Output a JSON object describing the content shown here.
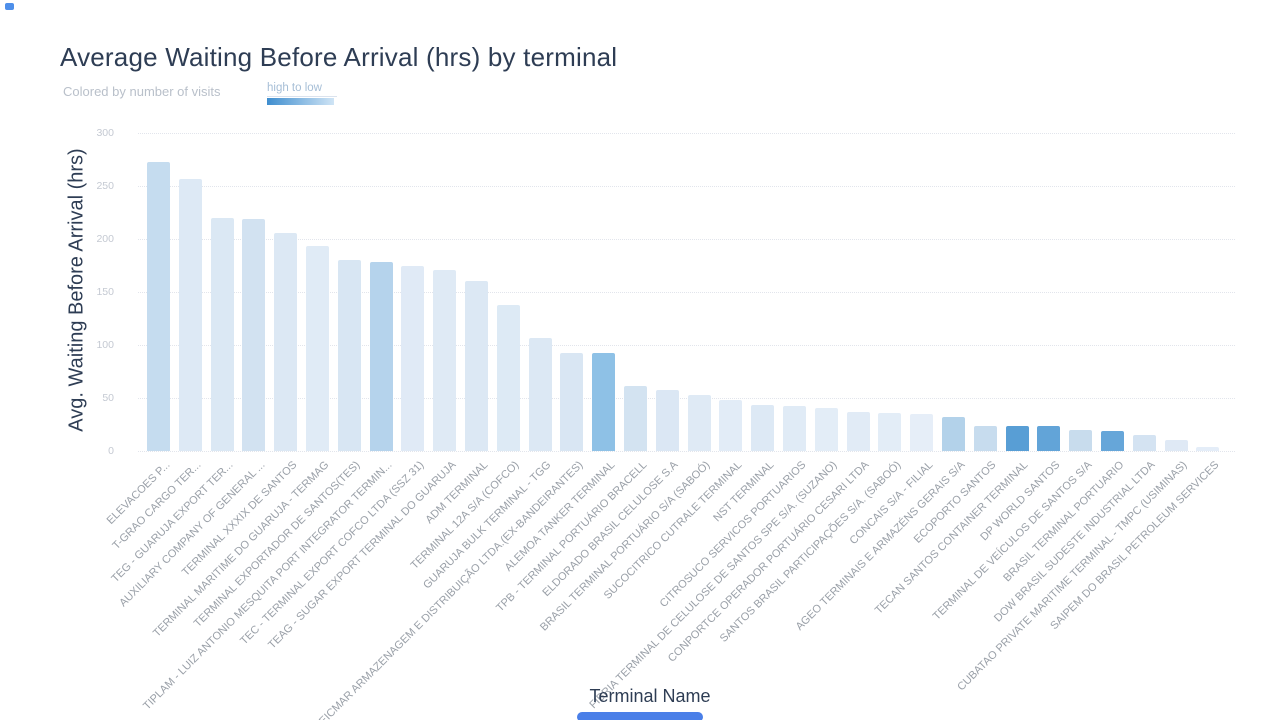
{
  "decorations": {
    "corner_dot_color": "#4e8fea",
    "bottom_indicator_color": "#4a7fe8"
  },
  "chart_data": {
    "type": "bar",
    "title": "Average Waiting Before Arrival (hrs) by terminal",
    "subtitle": "Colored by number of visits",
    "color_legend": {
      "label": "high to low",
      "from": "#3f8ecf",
      "to": "#cfe4f5"
    },
    "xlabel": "Terminal Name",
    "ylabel": "Avg. Waiting Before Arrival (hrs)",
    "ylim": [
      0,
      300
    ],
    "yticks": [
      0,
      50,
      100,
      150,
      200,
      250,
      300
    ],
    "grid": "horizontal-dotted",
    "legend_position": "top-left",
    "categories": [
      "ELEVACOES P...",
      "T-GRAO CARGO TER...",
      "TEG - GUARUJA EXPORT TER...",
      "AUXILIARY COMPANY OF GENERAL ...",
      "TERMINAL XXXIX DE SANTOS",
      "TERMINAL MARITIME DO GUARUJA - TERMAG",
      "TERMINAL EXPORTADOR DE SANTOS(TES)",
      "TIPLAM - LUIZ ANTONIO MESQUITA PORT INTEGRATOR TERMIN...",
      "TEC - TERMINAL EXPORT COFCO LTDA (SSZ 31)",
      "TEAG - SUGAR EXPORT TERMINAL DO GUARUJA",
      "ADM TERMINAL",
      "TERMINAL 12A S/A (COFCO)",
      "GUARUJA BULK TERMINAL - TGG",
      "DEICMAR ARMAZENAGEM E DISTRIBUIÇÃO LTDA.(EX-BANDEIRANTES)",
      "ALEMOA TANKER TERMINAL",
      "TPB - TERMINAL PORTUÁRIO BRACELL",
      "ELDORADO BRASIL CELULOSE S.A",
      "BRASIL TERMINAL PORTUÁRIO S/A (SABOÓ)",
      "SUCOCITRICO CUTRALE TERMINAL",
      "NST TERMINAL",
      "CITROSUCO SERVICOS PORTUARIOS",
      "FIBRIA TERMINAL DE CELULOSE DE SANTOS SPE S/A. (SUZANO)",
      "CONPORTCE OPERADOR PORTUÁRIO CESARI LTDA",
      "SANTOS BRASIL PARTICIPAÇÕES S/A. (SABOÓ)",
      "CONCAIS S/A - FILIAL",
      "AGEO TERMINAIS E ARMAZÉNS GERAIS S/A",
      "ECOPORTO SANTOS",
      "TECAN SANTOS CONTAINER TERMINAL",
      "DP WORLD SANTOS",
      "TERMINAL DE VEÍCULOS DE SANTOS S/A",
      "BRASIL TERMINAL PORTUARIO",
      "DOW BRASIL SUDESTE INDUSTRIAL LTDA",
      "CUBATAO PRIVATE MARITIME TERMINAL - TMPC (USIMINAS)",
      "SAIPEM DO BRASIL PETROLEUM SERVICES"
    ],
    "values": [
      273,
      257,
      220,
      219,
      206,
      193,
      180,
      178,
      175,
      171,
      160,
      138,
      107,
      92,
      92,
      61,
      58,
      53,
      48,
      43,
      42,
      41,
      37,
      36,
      35,
      32,
      24,
      24,
      24,
      20,
      19,
      15,
      10,
      4
    ],
    "bar_colors": [
      "#c5dcef",
      "#dde9f5",
      "#dbe8f4",
      "#d2e2f1",
      "#dce8f4",
      "#e0ebf6",
      "#d8e6f3",
      "#b5d3ec",
      "#e0eaf6",
      "#dfeaf5",
      "#dce8f4",
      "#ddeaf5",
      "#dce8f4",
      "#d9e6f3",
      "#8ec1e6",
      "#d3e3f1",
      "#dbe7f4",
      "#dfeaf5",
      "#e2ecf7",
      "#dde9f5",
      "#e0ebf6",
      "#e3edf7",
      "#e1ebf6",
      "#e3edf7",
      "#e6eef8",
      "#b3d2ea",
      "#c7dcee",
      "#589ed5",
      "#62a4d8",
      "#c8dced",
      "#66a6d9",
      "#d4e3f2",
      "#dfe9f5",
      "#e4edf8"
    ]
  }
}
